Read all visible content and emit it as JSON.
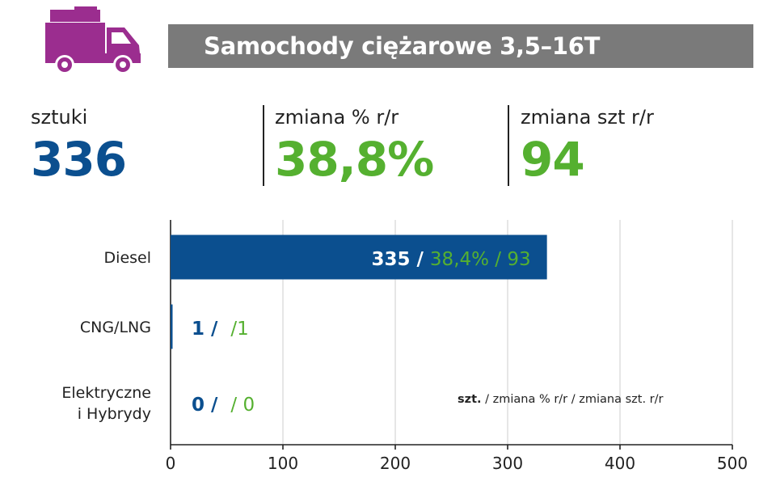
{
  "title": "Samochody ciężarowe 3,5–16T",
  "icon": "truck-icon",
  "colors": {
    "icon": "#9b2d8f",
    "title_bg": "#7a7a7a",
    "primary": "#0b4f8f",
    "accent": "#55b030",
    "grid": "#d9d9d9"
  },
  "kpis": [
    {
      "label": "sztuki",
      "value": "336",
      "color": "#0b4f8f"
    },
    {
      "label": "zmiana % r/r",
      "value": "38,8%",
      "color": "#55b030"
    },
    {
      "label": "zmiana szt r/r",
      "value": "94",
      "color": "#55b030"
    }
  ],
  "legend_note": {
    "bold": "szt.",
    "rest": " / zmiana % r/r / zmiana szt. r/r"
  },
  "chart_data": {
    "type": "bar",
    "orientation": "horizontal",
    "categories": [
      "Diesel",
      "CNG/LNG",
      "Elektryczne i Hybrydy"
    ],
    "category_lines": [
      [
        "Diesel"
      ],
      [
        "CNG/LNG"
      ],
      [
        "Elektryczne",
        "i Hybrydy"
      ]
    ],
    "values": [
      335,
      1,
      0
    ],
    "data_labels": [
      {
        "units": "335 /",
        "pct": "38,4% /",
        "diff": "93"
      },
      {
        "units": "1 /",
        "pct": "",
        "diff": "/1"
      },
      {
        "units": "0 /",
        "pct": "",
        "diff": "/ 0"
      }
    ],
    "xlim": [
      0,
      500
    ],
    "xticks": [
      0,
      100,
      200,
      300,
      400,
      500
    ],
    "grid": true,
    "legend": "bottom-right"
  }
}
